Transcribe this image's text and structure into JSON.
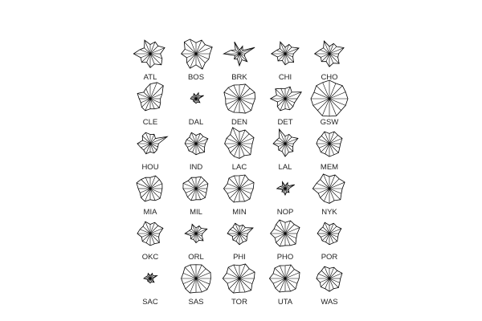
{
  "chart_data": {
    "type": "star",
    "title": "",
    "layout": {
      "rows": 6,
      "cols": 5
    },
    "n_variables": 16,
    "style": {
      "line_color": "#000000",
      "label_color": "#222222",
      "background": "#ffffff"
    },
    "stars": [
      {
        "label": "ATL",
        "values": [
          0.55,
          0.85,
          0.6,
          0.7,
          0.5,
          0.8,
          0.45,
          0.6,
          0.9,
          0.55,
          0.65,
          0.5,
          0.75,
          0.6,
          0.85,
          0.7
        ]
      },
      {
        "label": "BOS",
        "values": [
          0.75,
          0.95,
          0.7,
          0.8,
          0.6,
          0.85,
          0.9,
          0.65,
          0.8,
          0.55,
          0.7,
          0.85,
          0.6,
          0.9,
          0.7,
          0.75
        ]
      },
      {
        "label": "BRK",
        "values": [
          0.3,
          0.9,
          0.25,
          0.45,
          0.2,
          0.7,
          0.3,
          0.5,
          0.85,
          0.25,
          0.4,
          0.3,
          0.65,
          0.35,
          0.6,
          0.3
        ]
      },
      {
        "label": "CHI",
        "values": [
          0.45,
          0.8,
          0.5,
          0.55,
          0.35,
          0.7,
          0.4,
          0.5,
          0.75,
          0.45,
          0.55,
          0.4,
          0.6,
          0.5,
          0.65,
          0.45
        ]
      },
      {
        "label": "CHO",
        "values": [
          0.5,
          0.85,
          0.55,
          0.6,
          0.4,
          0.75,
          0.45,
          0.55,
          0.8,
          0.5,
          0.6,
          0.45,
          0.7,
          0.55,
          0.75,
          0.5
        ]
      },
      {
        "label": "CLE",
        "values": [
          0.55,
          0.7,
          1.0,
          0.95,
          0.8,
          0.6,
          0.5,
          0.75,
          0.6,
          0.55,
          0.65,
          0.7,
          0.55,
          0.6,
          0.7,
          0.6
        ]
      },
      {
        "label": "DAL",
        "values": [
          0.15,
          0.45,
          0.2,
          0.35,
          0.15,
          0.3,
          0.2,
          0.25,
          0.3,
          0.15,
          0.2,
          0.2,
          0.25,
          0.2,
          0.3,
          0.15
        ]
      },
      {
        "label": "DEN",
        "values": [
          0.85,
          0.9,
          0.8,
          0.85,
          0.75,
          0.8,
          0.85,
          0.9,
          0.75,
          0.8,
          0.85,
          0.8,
          0.75,
          0.85,
          0.9,
          0.8
        ]
      },
      {
        "label": "DET",
        "values": [
          0.65,
          0.95,
          0.5,
          0.7,
          0.55,
          0.6,
          0.75,
          0.5,
          0.8,
          0.45,
          0.6,
          0.7,
          0.55,
          0.65,
          0.6,
          0.55
        ]
      },
      {
        "label": "GSW",
        "values": [
          1.0,
          0.95,
          1.0,
          0.9,
          1.0,
          0.95,
          1.0,
          0.9,
          1.0,
          0.95,
          0.9,
          1.0,
          0.95,
          1.0,
          0.9,
          0.95
        ]
      },
      {
        "label": "HOU",
        "values": [
          0.45,
          1.0,
          0.4,
          0.55,
          0.5,
          0.65,
          0.6,
          0.45,
          0.7,
          0.55,
          0.5,
          0.6,
          0.45,
          0.55,
          0.5,
          0.45
        ]
      },
      {
        "label": "IND",
        "values": [
          0.5,
          0.7,
          0.55,
          0.6,
          0.45,
          0.65,
          0.5,
          0.55,
          0.6,
          0.5,
          0.55,
          0.5,
          0.6,
          0.55,
          0.65,
          0.5
        ]
      },
      {
        "label": "LAC",
        "values": [
          0.7,
          0.85,
          0.75,
          0.8,
          0.65,
          0.95,
          0.7,
          0.75,
          0.8,
          0.65,
          0.7,
          0.75,
          0.8,
          0.7,
          0.85,
          0.7
        ]
      },
      {
        "label": "LAL",
        "values": [
          0.45,
          0.75,
          0.5,
          0.55,
          0.4,
          0.85,
          0.45,
          0.5,
          0.65,
          0.4,
          0.5,
          0.45,
          0.7,
          0.5,
          0.6,
          0.45
        ]
      },
      {
        "label": "MEM",
        "values": [
          0.6,
          0.75,
          0.65,
          0.7,
          0.55,
          0.7,
          0.6,
          0.65,
          0.7,
          0.6,
          0.65,
          0.6,
          0.7,
          0.65,
          0.7,
          0.6
        ]
      },
      {
        "label": "MIA",
        "values": [
          0.65,
          0.7,
          0.7,
          0.75,
          0.6,
          0.65,
          0.7,
          0.8,
          0.65,
          0.6,
          0.7,
          0.75,
          0.6,
          0.7,
          0.75,
          0.65
        ]
      },
      {
        "label": "MIL",
        "values": [
          0.6,
          0.7,
          0.65,
          0.7,
          0.6,
          0.65,
          0.6,
          0.75,
          0.7,
          0.6,
          0.65,
          0.7,
          0.6,
          0.65,
          0.7,
          0.6
        ]
      },
      {
        "label": "MIN",
        "values": [
          0.75,
          0.85,
          0.7,
          0.8,
          0.7,
          0.75,
          0.8,
          0.7,
          0.85,
          0.7,
          0.75,
          0.8,
          0.7,
          0.75,
          0.8,
          0.7
        ]
      },
      {
        "label": "NOP",
        "values": [
          0.2,
          0.55,
          0.2,
          0.35,
          0.15,
          0.4,
          0.2,
          0.3,
          0.45,
          0.15,
          0.25,
          0.2,
          0.35,
          0.2,
          0.3,
          0.2
        ]
      },
      {
        "label": "NYK",
        "values": [
          0.7,
          0.9,
          0.75,
          0.8,
          0.65,
          0.85,
          0.7,
          0.75,
          0.9,
          0.65,
          0.7,
          0.75,
          0.8,
          0.7,
          0.85,
          0.7
        ]
      },
      {
        "label": "OKC",
        "values": [
          0.5,
          0.75,
          0.6,
          0.65,
          0.5,
          0.7,
          0.55,
          0.6,
          0.7,
          0.5,
          0.6,
          0.55,
          0.65,
          0.6,
          0.7,
          0.5
        ]
      },
      {
        "label": "ORL",
        "values": [
          0.35,
          0.65,
          0.4,
          0.45,
          0.3,
          0.55,
          0.35,
          0.4,
          0.6,
          0.3,
          0.4,
          0.35,
          0.5,
          0.4,
          0.55,
          0.35
        ]
      },
      {
        "label": "PHI",
        "values": [
          0.45,
          0.8,
          0.45,
          0.5,
          0.4,
          0.6,
          0.5,
          0.55,
          0.65,
          0.4,
          0.5,
          0.45,
          0.6,
          0.5,
          0.55,
          0.45
        ]
      },
      {
        "label": "PHO",
        "values": [
          0.65,
          0.85,
          0.7,
          0.75,
          0.6,
          0.8,
          0.7,
          0.65,
          0.8,
          0.6,
          0.7,
          0.75,
          0.65,
          0.7,
          0.8,
          0.65
        ]
      },
      {
        "label": "POR",
        "values": [
          0.5,
          0.7,
          0.55,
          0.6,
          0.45,
          0.65,
          0.5,
          0.55,
          0.65,
          0.5,
          0.55,
          0.5,
          0.6,
          0.55,
          0.6,
          0.5
        ]
      },
      {
        "label": "SAC",
        "values": [
          0.15,
          0.4,
          0.2,
          0.3,
          0.15,
          0.3,
          0.2,
          0.25,
          0.35,
          0.15,
          0.2,
          0.2,
          0.25,
          0.2,
          0.3,
          0.15
        ]
      },
      {
        "label": "SAS",
        "values": [
          0.8,
          0.85,
          0.75,
          0.8,
          0.75,
          0.8,
          0.85,
          0.75,
          0.8,
          0.75,
          0.8,
          0.85,
          0.75,
          0.8,
          0.85,
          0.8
        ]
      },
      {
        "label": "TOR",
        "values": [
          0.8,
          0.9,
          0.75,
          0.85,
          0.7,
          0.8,
          0.85,
          0.75,
          0.9,
          0.7,
          0.8,
          0.85,
          0.75,
          0.8,
          0.9,
          0.75
        ]
      },
      {
        "label": "UTA",
        "values": [
          0.75,
          0.85,
          0.7,
          0.8,
          0.7,
          0.75,
          0.8,
          0.7,
          0.85,
          0.7,
          0.75,
          0.8,
          0.7,
          0.75,
          0.8,
          0.7
        ]
      },
      {
        "label": "WAS",
        "values": [
          0.6,
          0.75,
          0.6,
          0.65,
          0.55,
          0.7,
          0.6,
          0.65,
          0.7,
          0.55,
          0.65,
          0.6,
          0.7,
          0.6,
          0.7,
          0.6
        ]
      }
    ]
  }
}
